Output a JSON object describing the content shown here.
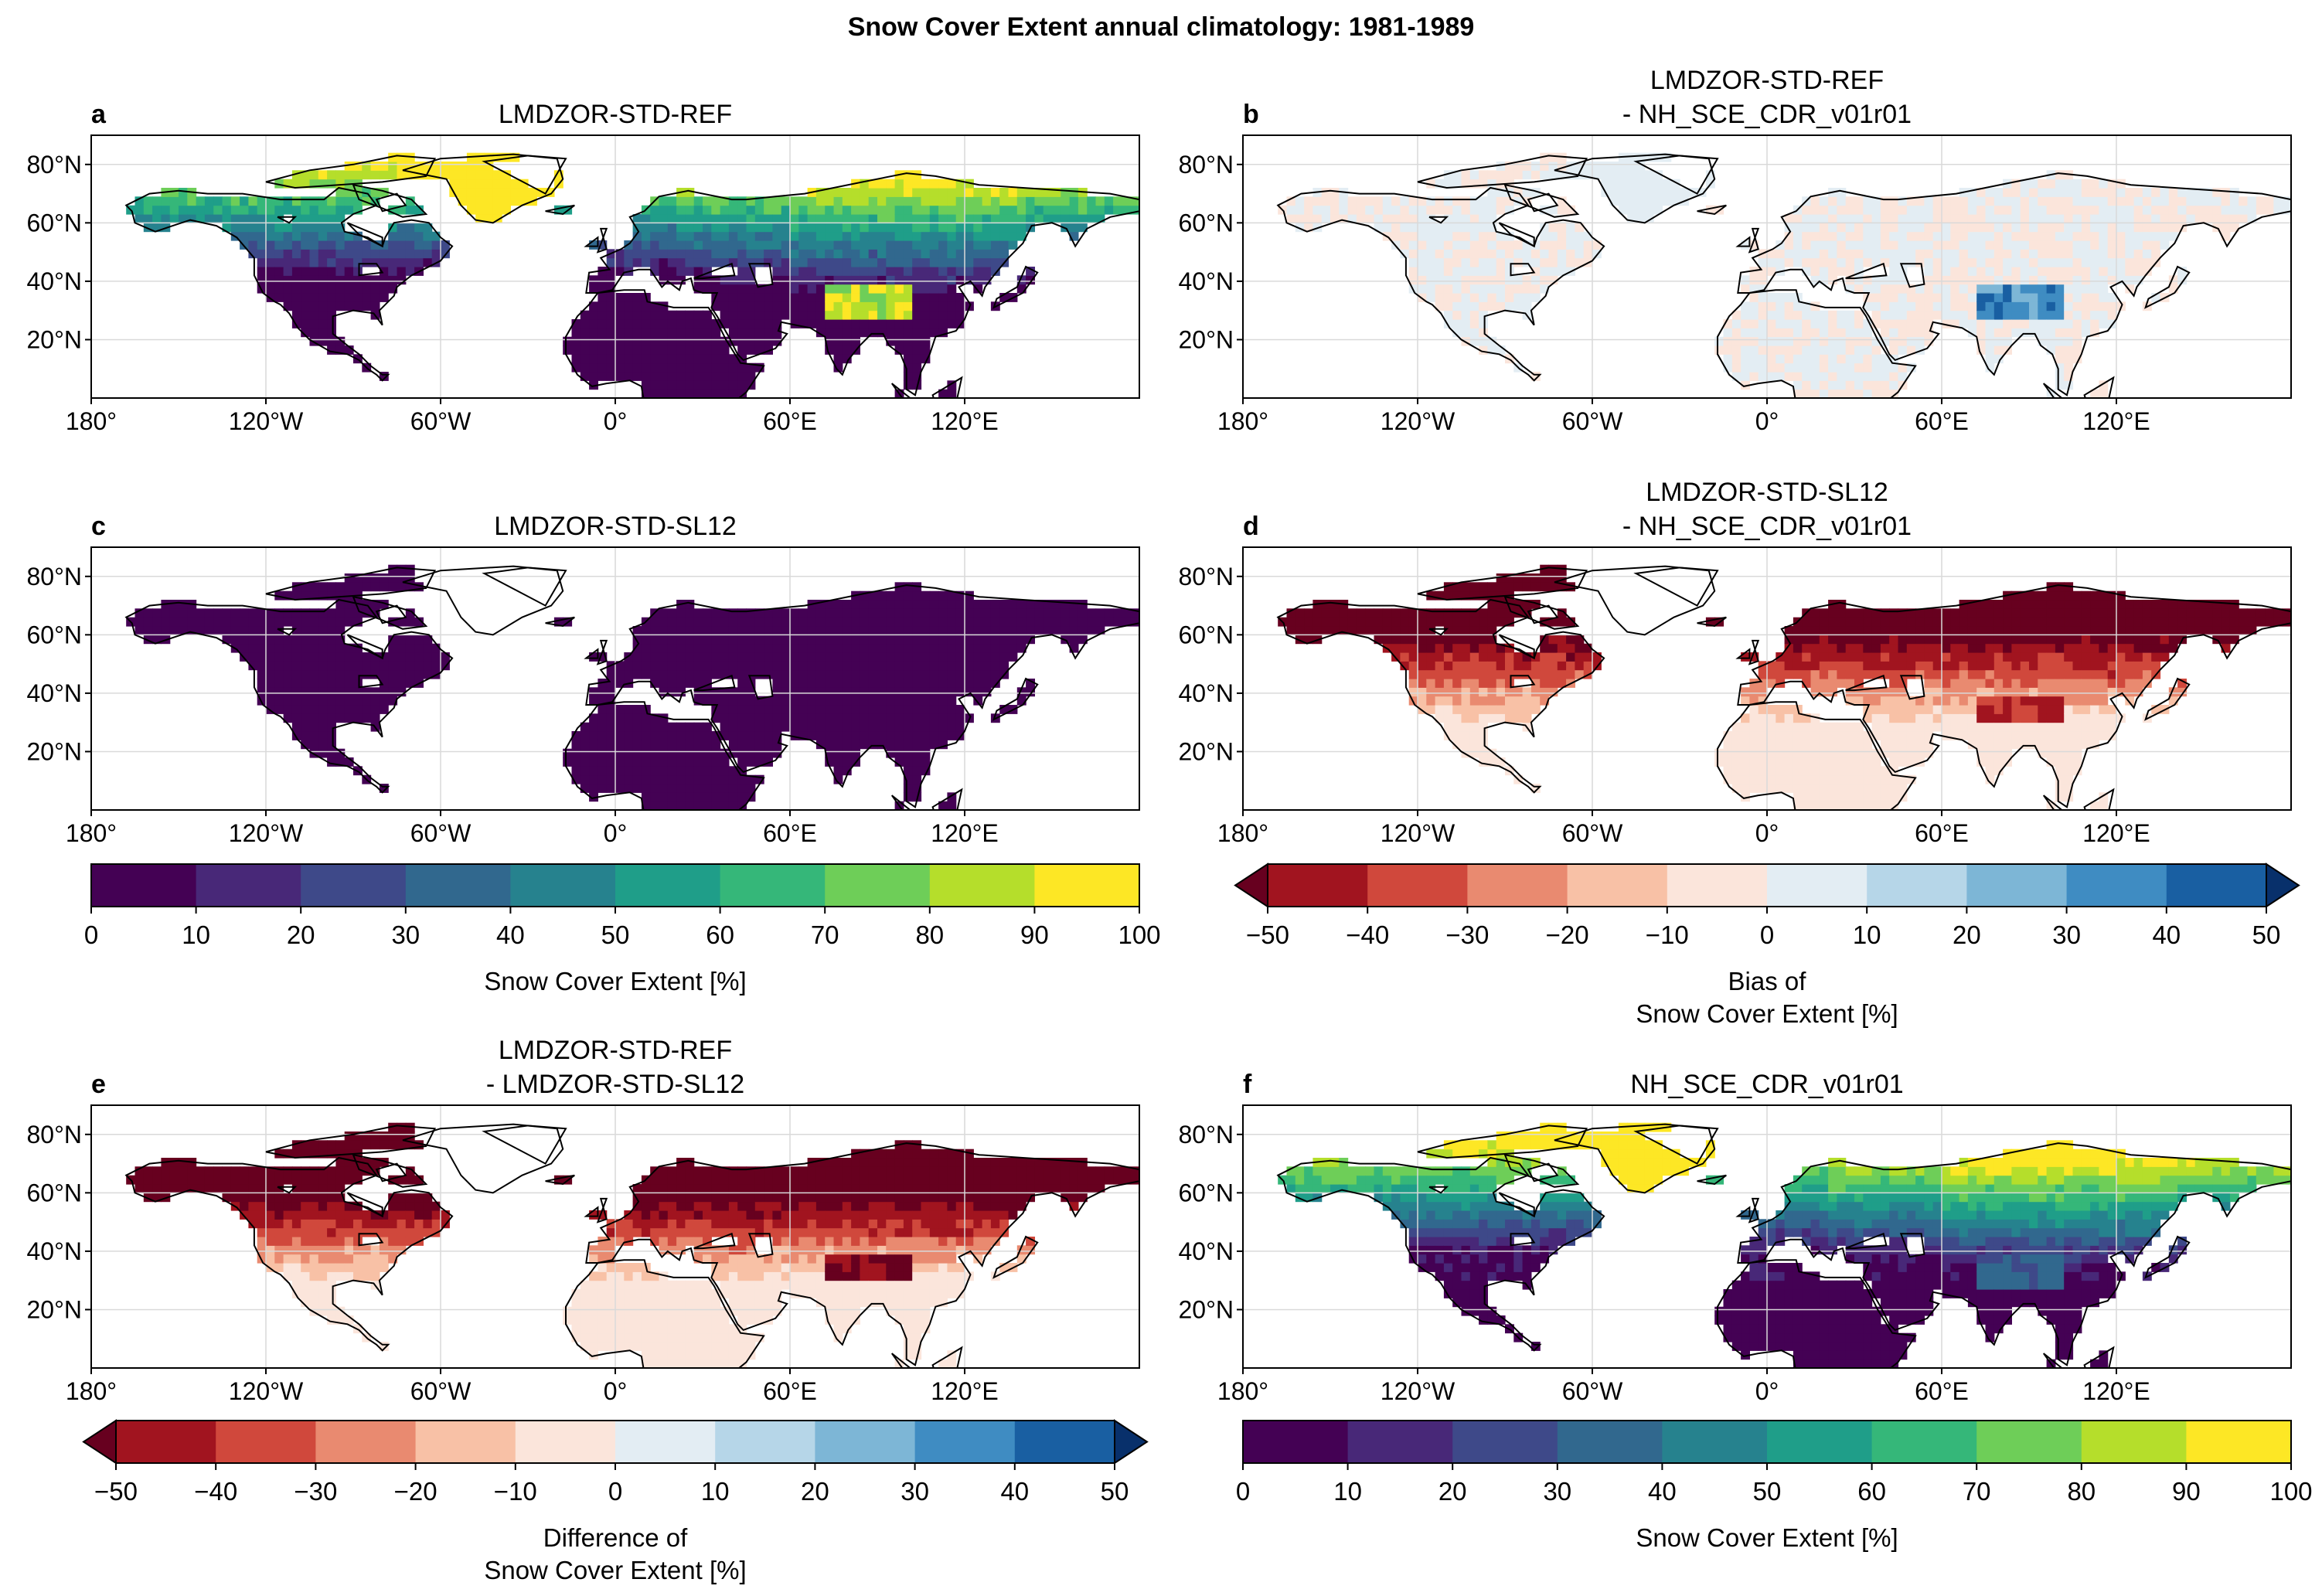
{
  "figure": {
    "title": "Snow Cover Extent annual climatology: 1981-1989"
  },
  "colors": {
    "viridis": [
      "#440154",
      "#482878",
      "#3e4989",
      "#31688e",
      "#26828e",
      "#1f9e89",
      "#35b779",
      "#6ece58",
      "#b5de2b",
      "#fde725"
    ],
    "rdbu": [
      "#a1141f",
      "#d0483c",
      "#e98a70",
      "#f8c1a6",
      "#fbe5db",
      "#e3edf3",
      "#b6d6e8",
      "#7db6d6",
      "#3f8cc2",
      "#195fa2"
    ],
    "rdbu_under": "#67001f",
    "rdbu_over": "#08306b",
    "land_zero": "#440154",
    "coastline": "#000000",
    "grid": "#d9d9d9"
  },
  "chart_data": [
    {
      "type": "heatmap",
      "panel": "a",
      "title_lines": [
        "LMDZOR-STD-REF"
      ],
      "variable": "Snow Cover Extent",
      "unit": "%",
      "x_ticks": [
        "180°",
        "120°W",
        "60°W",
        "0°",
        "60°E",
        "120°E"
      ],
      "y_ticks": [
        "80°N",
        "60°N",
        "40°N",
        "20°N"
      ],
      "xlim": [
        -180,
        180
      ],
      "ylim": [
        0,
        90
      ],
      "field": "model_ref",
      "colormap": "viridis",
      "levels": [
        0,
        100
      ]
    },
    {
      "type": "heatmap",
      "panel": "b",
      "title_lines": [
        "LMDZOR-STD-REF",
        "- NH_SCE_CDR_v01r01"
      ],
      "variable": "Bias of Snow Cover Extent",
      "unit": "%",
      "x_ticks": [
        "180°",
        "120°W",
        "60°W",
        "0°",
        "60°E",
        "120°E"
      ],
      "y_ticks": [
        "80°N",
        "60°N",
        "40°N",
        "20°N"
      ],
      "xlim": [
        -180,
        180
      ],
      "ylim": [
        0,
        90
      ],
      "field": "bias_ref",
      "colormap": "rdbu",
      "levels": [
        -50,
        50
      ]
    },
    {
      "type": "heatmap",
      "panel": "c",
      "title_lines": [
        "LMDZOR-STD-SL12"
      ],
      "variable": "Snow Cover Extent",
      "unit": "%",
      "x_ticks": [
        "180°",
        "120°W",
        "60°W",
        "0°",
        "60°E",
        "120°E"
      ],
      "y_ticks": [
        "80°N",
        "60°N",
        "40°N",
        "20°N"
      ],
      "xlim": [
        -180,
        180
      ],
      "ylim": [
        0,
        90
      ],
      "field": "model_sl12",
      "colormap": "viridis",
      "levels": [
        0,
        100
      ]
    },
    {
      "type": "heatmap",
      "panel": "d",
      "title_lines": [
        "LMDZOR-STD-SL12",
        "- NH_SCE_CDR_v01r01"
      ],
      "variable": "Bias of Snow Cover Extent",
      "unit": "%",
      "x_ticks": [
        "180°",
        "120°W",
        "60°W",
        "0°",
        "60°E",
        "120°E"
      ],
      "y_ticks": [
        "80°N",
        "60°N",
        "40°N",
        "20°N"
      ],
      "xlim": [
        -180,
        180
      ],
      "ylim": [
        0,
        90
      ],
      "field": "bias_sl12",
      "colormap": "rdbu",
      "levels": [
        -50,
        50
      ]
    },
    {
      "type": "heatmap",
      "panel": "e",
      "title_lines": [
        "LMDZOR-STD-REF",
        "- LMDZOR-STD-SL12"
      ],
      "variable": "Difference of Snow Cover Extent",
      "unit": "%",
      "x_ticks": [
        "180°",
        "120°W",
        "60°W",
        "0°",
        "60°E",
        "120°E"
      ],
      "y_ticks": [
        "80°N",
        "60°N",
        "40°N",
        "20°N"
      ],
      "xlim": [
        -180,
        180
      ],
      "ylim": [
        0,
        90
      ],
      "field": "difference",
      "colormap": "rdbu",
      "levels": [
        -50,
        50
      ]
    },
    {
      "type": "heatmap",
      "panel": "f",
      "title_lines": [
        "NH_SCE_CDR_v01r01"
      ],
      "variable": "Snow Cover Extent",
      "unit": "%",
      "x_ticks": [
        "180°",
        "120°W",
        "60°W",
        "0°",
        "60°E",
        "120°E"
      ],
      "y_ticks": [
        "80°N",
        "60°N",
        "40°N",
        "20°N"
      ],
      "xlim": [
        -180,
        180
      ],
      "ylim": [
        0,
        90
      ],
      "field": "observation",
      "colormap": "viridis",
      "levels": [
        0,
        100
      ]
    }
  ],
  "colorbars": [
    {
      "id": "cb_c",
      "colormap": "viridis",
      "ticks": [
        "0",
        "10",
        "20",
        "30",
        "40",
        "50",
        "60",
        "70",
        "80",
        "90",
        "100"
      ],
      "label_lines": [
        "Snow Cover Extent [%]"
      ],
      "extend": false
    },
    {
      "id": "cb_d",
      "colormap": "rdbu",
      "ticks": [
        "−50",
        "−40",
        "−30",
        "−20",
        "−10",
        "0",
        "10",
        "20",
        "30",
        "40",
        "50"
      ],
      "label_lines": [
        "Bias of",
        "Snow Cover Extent [%]"
      ],
      "extend": true
    },
    {
      "id": "cb_e",
      "colormap": "rdbu",
      "ticks": [
        "−50",
        "−40",
        "−30",
        "−20",
        "−10",
        "0",
        "10",
        "20",
        "30",
        "40",
        "50"
      ],
      "label_lines": [
        "Difference of",
        "Snow Cover Extent [%]"
      ],
      "extend": true
    },
    {
      "id": "cb_f",
      "colormap": "viridis",
      "ticks": [
        "0",
        "10",
        "20",
        "30",
        "40",
        "50",
        "60",
        "70",
        "80",
        "90",
        "100"
      ],
      "label_lines": [
        "Snow Cover Extent [%]"
      ],
      "extend": false
    }
  ]
}
